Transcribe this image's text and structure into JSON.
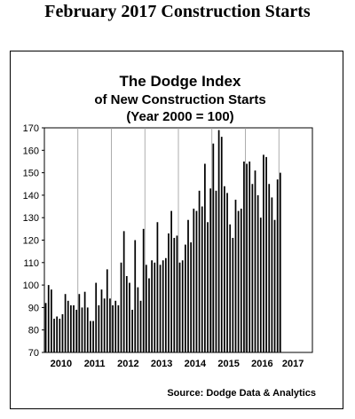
{
  "headline": "February 2017 Construction Starts",
  "chart_data": {
    "type": "bar",
    "title": "The Dodge Index",
    "subtitle_lines": [
      "of New Construction Starts",
      "(Year 2000 = 100)"
    ],
    "source": "Source:  Dodge Data & Analytics",
    "xlabel": "",
    "ylabel": "",
    "ylim": [
      70,
      170
    ],
    "yticks": [
      70,
      80,
      90,
      100,
      110,
      120,
      130,
      140,
      150,
      160,
      170
    ],
    "year_labels": [
      "2010",
      "2011",
      "2012",
      "2013",
      "2014",
      "2015",
      "2016",
      "2017"
    ],
    "x_start": "Jan 2010",
    "x_end": "Feb 2017",
    "grid": "vertical",
    "series": [
      {
        "values": [
          92,
          100,
          98,
          85,
          86,
          85,
          87,
          96,
          93,
          91,
          91,
          89,
          96,
          90,
          97,
          90,
          84,
          84,
          101,
          91,
          98,
          94,
          107,
          94,
          91,
          93,
          91,
          110,
          124,
          104,
          101,
          89,
          120,
          99,
          93,
          125,
          109,
          103,
          111,
          110,
          128,
          109,
          111,
          112,
          123,
          133,
          121,
          122,
          110,
          111,
          118,
          129,
          119,
          134,
          133,
          142,
          135,
          154,
          128,
          143,
          163,
          142,
          169,
          166,
          144,
          141,
          127,
          121,
          138,
          133,
          134,
          155,
          154,
          155,
          145,
          151,
          140,
          130,
          158,
          157,
          145,
          139,
          129,
          147,
          150
        ]
      }
    ]
  }
}
